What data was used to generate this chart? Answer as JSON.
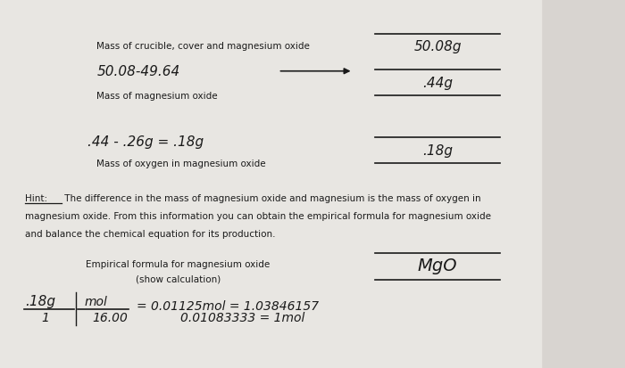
{
  "bg_color": "#d8d4d0",
  "paper_color": "#e8e6e2",
  "black_color": "#1a1a1a",
  "label1": "Mass of crucible, cover and magnesium oxide",
  "handwritten1": "50.08-49.64",
  "label_mg": "Mass of magnesium oxide",
  "ans1a": "50.08g",
  "ans1b": ".44g",
  "handwritten2": ".44 - .26g = .18g",
  "label_o": "Mass of oxygen in magnesium oxide",
  "ans2": ".18g",
  "hint_word": "Hint:",
  "hint_line1": " The difference in the mass of magnesium oxide and magnesium is the mass of oxygen in",
  "hint_line2": "magnesium oxide. From this information you can obtain the empirical formula for magnesium oxide",
  "hint_line3": "and balance the chemical equation for its production.",
  "emp_label1": "Empirical formula for magnesium oxide",
  "emp_label2": "(show calculation)",
  "emp_ans": "MgO",
  "calc_numer_left": ".18g",
  "calc_denom_left": "1",
  "calc_numer_right": "mol",
  "calc_denom_right": "16.00",
  "calc_eq1": "= 0.01125mol = 1.03846157",
  "calc_eq2": "0.01083333 = 1mol"
}
